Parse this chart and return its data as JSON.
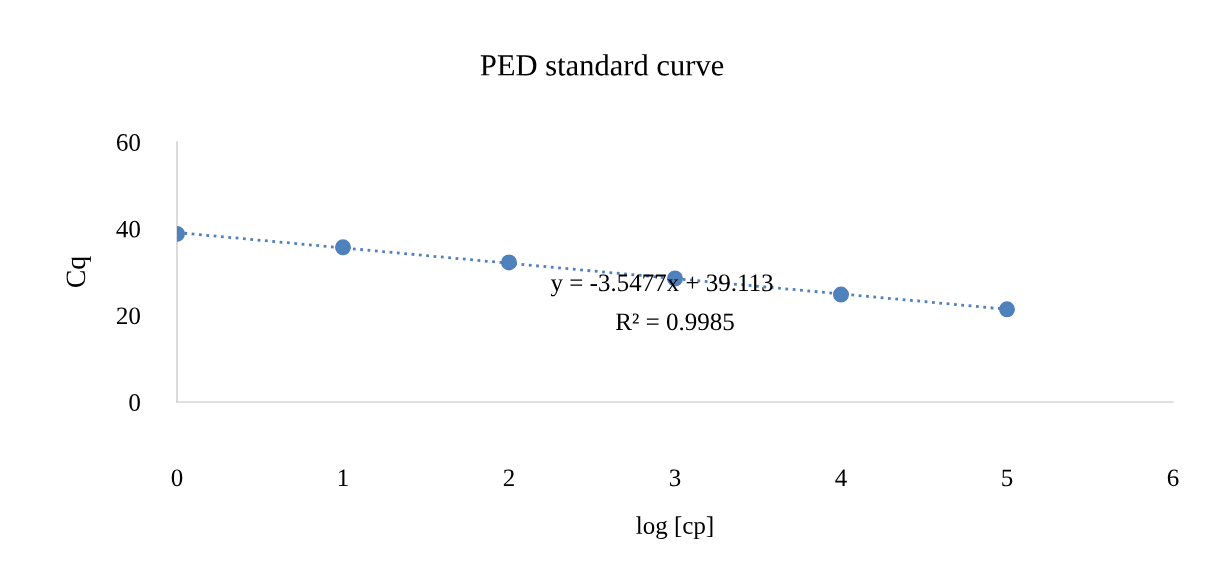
{
  "chart_data": {
    "type": "scatter",
    "title": "PED standard curve",
    "xlabel": "log [cp]",
    "ylabel": "Cq",
    "x": [
      0,
      1,
      2,
      3,
      4,
      5
    ],
    "series": [
      {
        "color": "#4f81bd",
        "values": [
          38.8,
          35.7,
          32.2,
          28.5,
          24.8,
          21.4
        ],
        "marker": "circle"
      },
      {
        "type": "line",
        "color": "#4f81bd",
        "x": [
          0,
          5
        ],
        "values": [
          39.1,
          21.4
        ],
        "line_style": "dotted",
        "marker": "none"
      }
    ],
    "xlim": [
      0,
      6
    ],
    "xticks": [
      0,
      1,
      2,
      3,
      4,
      5,
      6
    ],
    "ylim": [
      0,
      60
    ],
    "yticks": [
      0,
      20,
      40,
      60
    ],
    "grid": false,
    "legend": false,
    "annotations": [
      "y = -3.5477x + 39.113",
      "R² = 0.9985"
    ]
  }
}
